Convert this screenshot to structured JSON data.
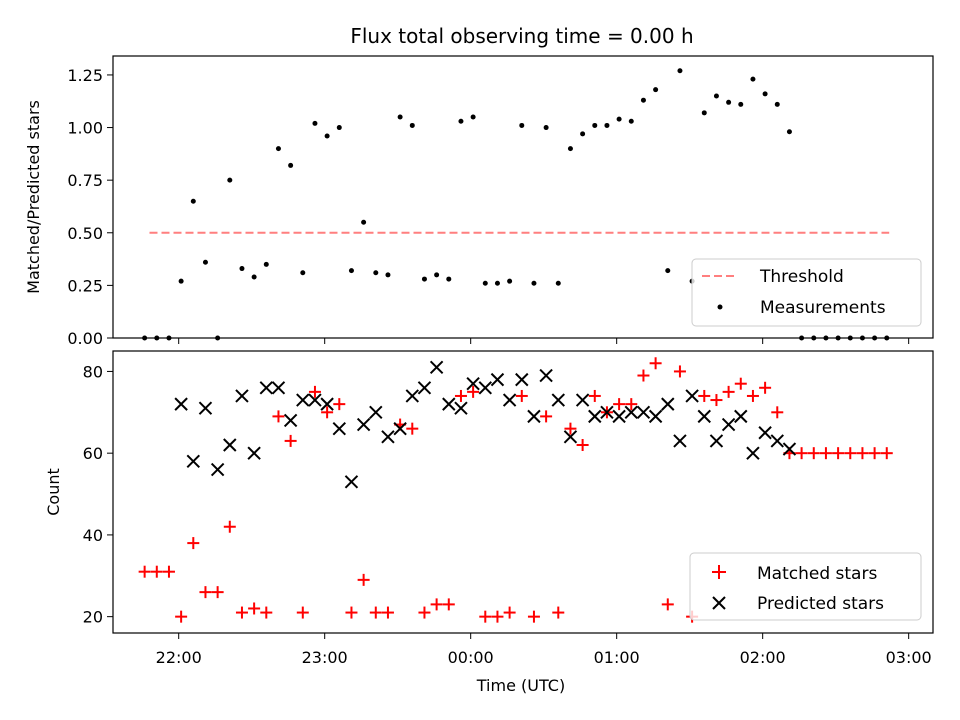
{
  "chart_data": [
    {
      "type": "scatter",
      "title": "Flux total observing time = 0.00 h",
      "xlabel": "",
      "ylabel": "Matched/Predicted stars",
      "ylim": [
        0,
        1.34
      ],
      "xlim": [
        "21:33",
        "03:10"
      ],
      "yticks": [
        0.0,
        0.25,
        0.5,
        0.75,
        1.0,
        1.25
      ],
      "ytick_labels": [
        "0.00",
        "0.25",
        "0.50",
        "0.75",
        "1.00",
        "1.25"
      ],
      "legend_position": "lower-right",
      "series": [
        {
          "name": "Threshold",
          "style": "dashed-line",
          "color": "#ff7f7f",
          "x": [
            "21:48",
            "02:52"
          ],
          "y": [
            0.5,
            0.5
          ]
        },
        {
          "name": "Measurements",
          "style": "dot",
          "color": "#000000",
          "x": [
            "21:46",
            "21:51",
            "21:56",
            "22:01",
            "22:06",
            "22:11",
            "22:16",
            "22:21",
            "22:26",
            "22:31",
            "22:36",
            "22:41",
            "22:46",
            "22:51",
            "22:56",
            "23:01",
            "23:06",
            "23:11",
            "23:16",
            "23:21",
            "23:26",
            "23:31",
            "23:36",
            "23:41",
            "23:46",
            "23:51",
            "23:56",
            "00:01",
            "00:06",
            "00:11",
            "00:16",
            "00:21",
            "00:26",
            "00:31",
            "00:36",
            "00:41",
            "00:46",
            "00:51",
            "00:56",
            "01:01",
            "01:06",
            "01:11",
            "01:16",
            "01:21",
            "01:26",
            "01:31",
            "01:36",
            "01:41",
            "01:46",
            "01:51",
            "01:56",
            "02:01",
            "02:06",
            "02:11",
            "02:16",
            "02:21",
            "02:26",
            "02:31",
            "02:36",
            "02:41",
            "02:46",
            "02:51"
          ],
          "y": [
            0.0,
            0.0,
            0.0,
            0.27,
            0.65,
            0.36,
            0.0,
            0.75,
            0.33,
            0.29,
            0.35,
            0.9,
            0.82,
            0.31,
            1.02,
            0.96,
            1.0,
            0.32,
            0.55,
            0.31,
            0.3,
            1.05,
            1.01,
            0.28,
            0.3,
            0.28,
            1.03,
            1.05,
            0.26,
            0.26,
            0.27,
            1.01,
            0.26,
            1.0,
            0.26,
            0.9,
            0.97,
            1.01,
            1.01,
            1.04,
            1.03,
            1.13,
            1.18,
            0.32,
            1.27,
            0.27,
            1.07,
            1.15,
            1.12,
            1.11,
            1.23,
            1.16,
            1.11,
            0.98,
            0.0,
            0.0,
            0.0,
            0.0,
            0.0,
            0.0,
            0.0,
            0.0
          ]
        }
      ]
    },
    {
      "type": "scatter",
      "title": "",
      "xlabel": "Time (UTC)",
      "ylabel": "Count",
      "ylim": [
        16,
        85
      ],
      "xlim": [
        "21:33",
        "03:10"
      ],
      "yticks": [
        20,
        40,
        60,
        80
      ],
      "ytick_labels": [
        "20",
        "40",
        "60",
        "80"
      ],
      "xtick_labels": [
        "22:00",
        "23:00",
        "00:00",
        "01:00",
        "02:00",
        "03:00"
      ],
      "legend_position": "lower-right",
      "series": [
        {
          "name": "Matched stars",
          "marker": "plus",
          "color": "#ff0000",
          "x": [
            "21:46",
            "21:51",
            "21:56",
            "22:01",
            "22:06",
            "22:11",
            "22:16",
            "22:21",
            "22:26",
            "22:31",
            "22:36",
            "22:41",
            "22:46",
            "22:51",
            "22:56",
            "23:01",
            "23:06",
            "23:11",
            "23:16",
            "23:21",
            "23:26",
            "23:31",
            "23:36",
            "23:41",
            "23:46",
            "23:51",
            "23:56",
            "00:01",
            "00:06",
            "00:11",
            "00:16",
            "00:21",
            "00:26",
            "00:31",
            "00:36",
            "00:41",
            "00:46",
            "00:51",
            "00:56",
            "01:01",
            "01:06",
            "01:11",
            "01:16",
            "01:21",
            "01:26",
            "01:31",
            "01:36",
            "01:41",
            "01:46",
            "01:51",
            "01:56",
            "02:01",
            "02:06",
            "02:11",
            "02:16",
            "02:21",
            "02:26",
            "02:31",
            "02:36",
            "02:41",
            "02:46",
            "02:51"
          ],
          "y": [
            31,
            31,
            31,
            20,
            38,
            26,
            26,
            42,
            21,
            22,
            21,
            69,
            63,
            21,
            75,
            70,
            72,
            21,
            29,
            21,
            21,
            67,
            66,
            21,
            23,
            23,
            74,
            75,
            20,
            20,
            21,
            74,
            20,
            69,
            21,
            66,
            62,
            74,
            70,
            72,
            72,
            79,
            82,
            23,
            80,
            20,
            74,
            73,
            75,
            77,
            74,
            76,
            70,
            60,
            60,
            60,
            60,
            60,
            60,
            60,
            60,
            60
          ]
        },
        {
          "name": "Predicted stars",
          "marker": "x",
          "color": "#000000",
          "x": [
            "22:01",
            "22:06",
            "22:11",
            "22:16",
            "22:21",
            "22:26",
            "22:31",
            "22:36",
            "22:41",
            "22:46",
            "22:51",
            "22:56",
            "23:01",
            "23:06",
            "23:11",
            "23:16",
            "23:21",
            "23:26",
            "23:31",
            "23:36",
            "23:41",
            "23:46",
            "23:51",
            "23:56",
            "00:01",
            "00:06",
            "00:11",
            "00:16",
            "00:21",
            "00:26",
            "00:31",
            "00:36",
            "00:41",
            "00:46",
            "00:51",
            "00:56",
            "01:01",
            "01:06",
            "01:11",
            "01:16",
            "01:21",
            "01:26",
            "01:31",
            "01:36",
            "01:41",
            "01:46",
            "01:51",
            "01:56",
            "02:01",
            "02:06",
            "02:11"
          ],
          "y": [
            72,
            58,
            71,
            56,
            62,
            74,
            60,
            76,
            76,
            68,
            73,
            73,
            72,
            66,
            53,
            67,
            70,
            64,
            66,
            74,
            76,
            81,
            72,
            71,
            77,
            76,
            78,
            73,
            78,
            69,
            79,
            73,
            64,
            73,
            69,
            70,
            69,
            70,
            70,
            69,
            72,
            63,
            74,
            69,
            63,
            67,
            69,
            60,
            65,
            63,
            61
          ]
        }
      ]
    }
  ]
}
